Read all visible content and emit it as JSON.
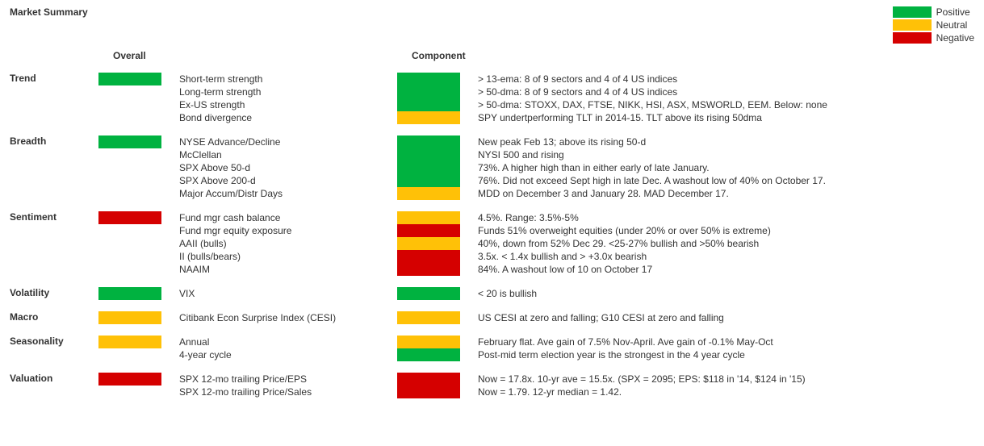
{
  "title": "Market Summary",
  "colors": {
    "positive": "#00b240",
    "neutral": "#ffc107",
    "negative": "#d50000",
    "text": "#333333",
    "bg": "#ffffff"
  },
  "legend": [
    {
      "label": "Positive",
      "colorKey": "positive"
    },
    {
      "label": "Neutral",
      "colorKey": "neutral"
    },
    {
      "label": "Negative",
      "colorKey": "negative"
    }
  ],
  "headers": {
    "overall": "Overall",
    "component": "Component"
  },
  "sections": [
    {
      "name": "Trend",
      "overall": "positive",
      "rows": [
        {
          "label": "Short-term strength",
          "component": "positive",
          "note": "> 13-ema: 8 of 9 sectors and 4 of 4 US indices"
        },
        {
          "label": "Long-term strength",
          "component": "positive",
          "note": "> 50-dma: 8 of 9 sectors and 4 of 4 US indices"
        },
        {
          "label": "Ex-US strength",
          "component": "positive",
          "note": "> 50-dma:  STOXX, DAX, FTSE, NIKK, HSI, ASX, MSWORLD, EEM.   Below: none"
        },
        {
          "label": "Bond divergence",
          "component": "neutral",
          "note": "SPY undertperforming TLT in 2014-15. TLT above its rising 50dma"
        }
      ]
    },
    {
      "name": "Breadth",
      "overall": "positive",
      "rows": [
        {
          "label": "NYSE Advance/Decline",
          "component": "positive",
          "note": "New peak Feb 13; above its rising 50-d"
        },
        {
          "label": "McClellan",
          "component": "positive",
          "note": "NYSI 500 and rising"
        },
        {
          "label": "SPX Above 50-d",
          "component": "positive",
          "note": "73%.  A higher high than in either early of late January."
        },
        {
          "label": "SPX Above 200-d",
          "component": "positive",
          "note": "76%. Did not exceed Sept high in late Dec. A washout low of 40% on October 17."
        },
        {
          "label": "Major Accum/Distr Days",
          "component": "neutral",
          "note": "MDD on December 3 and January 28. MAD December 17."
        }
      ]
    },
    {
      "name": "Sentiment",
      "overall": "negative",
      "rows": [
        {
          "label": "Fund mgr cash balance",
          "component": "neutral",
          "note": "4.5%. Range: 3.5%-5%"
        },
        {
          "label": "Fund mgr equity exposure",
          "component": "negative",
          "note": "Funds 51% overweight equities (under 20% or over 50% is extreme)"
        },
        {
          "label": "AAII (bulls)",
          "component": "neutral",
          "note": "40%, down from 52% Dec 29. <25-27% bullish and >50% bearish"
        },
        {
          "label": "II (bulls/bears)",
          "component": "negative",
          "note": "3.5x. < 1.4x bullish and > +3.0x bearish"
        },
        {
          "label": "NAAIM",
          "component": "negative",
          "note": "84%. A washout low of 10 on October 17"
        }
      ]
    },
    {
      "name": "Volatility",
      "overall": "positive",
      "rows": [
        {
          "label": "VIX",
          "component": "positive",
          "note": "< 20 is bullish"
        }
      ]
    },
    {
      "name": "Macro",
      "overall": "neutral",
      "rows": [
        {
          "label": "Citibank Econ Surprise Index (CESI)",
          "component": "neutral",
          "note": "US CESI at zero and falling;  G10 CESI at zero and falling"
        }
      ]
    },
    {
      "name": "Seasonality",
      "overall": "neutral",
      "rows": [
        {
          "label": "Annual",
          "component": "neutral",
          "note": "February flat. Ave gain of 7.5% Nov-April. Ave gain of -0.1% May-Oct"
        },
        {
          "label": "4-year cycle",
          "component": "positive",
          "note": "Post-mid term election year is the strongest in the 4 year cycle"
        }
      ]
    },
    {
      "name": "Valuation",
      "overall": "negative",
      "rows": [
        {
          "label": "SPX 12-mo trailing Price/EPS",
          "component": "negative",
          "note": "Now = 17.8x. 10-yr ave = 15.5x.  (SPX = 2095; EPS: $118 in '14, $124 in '15)"
        },
        {
          "label": "SPX 12-mo trailing Price/Sales",
          "component": "negative",
          "note": "Now = 1.79. 12-yr median = 1.42."
        }
      ]
    }
  ]
}
